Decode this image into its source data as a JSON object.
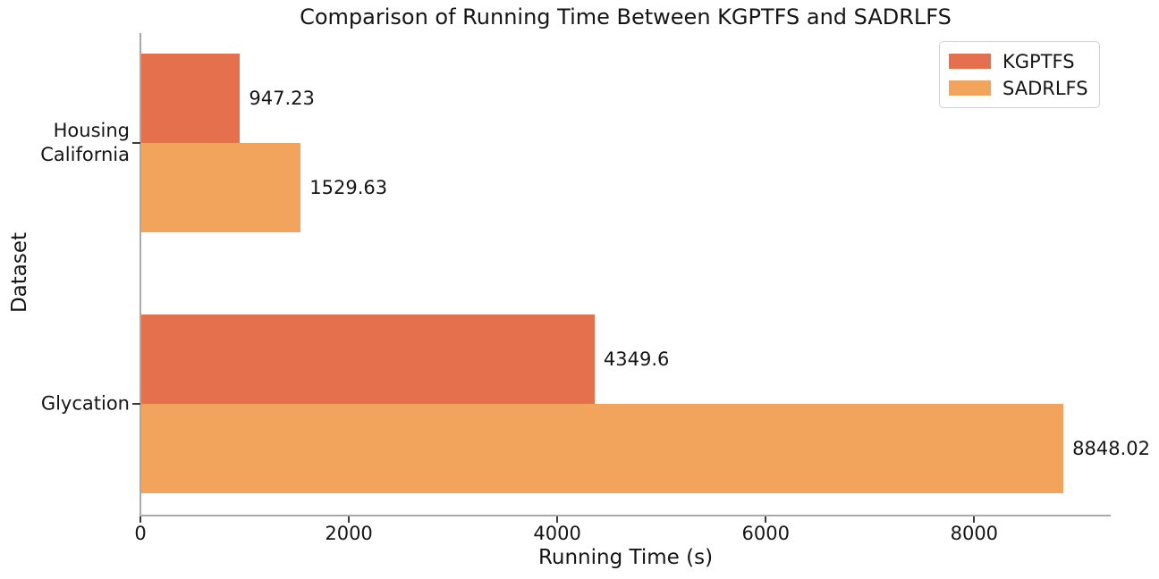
{
  "chart_data": {
    "type": "bar",
    "orientation": "horizontal",
    "title": "Comparison of Running Time Between KGPTFS and SADRLFS",
    "xlabel": "Running Time (s)",
    "ylabel": "Dataset",
    "categories": [
      "Housing\nCalifornia",
      "Glycation"
    ],
    "category_labels": [
      [
        "Housing",
        "California"
      ],
      [
        "Glycation"
      ]
    ],
    "series": [
      {
        "name": "KGPTFS",
        "color": "#e4704e",
        "values": [
          947.23,
          4349.6
        ],
        "value_labels": [
          "947.23",
          "4349.6"
        ]
      },
      {
        "name": "SADRLFS",
        "color": "#f3a45c",
        "values": [
          1529.63,
          8848.02
        ],
        "value_labels": [
          "1529.63",
          "8848.02"
        ]
      }
    ],
    "xticks": [
      0,
      2000,
      4000,
      6000,
      8000
    ],
    "xtick_labels": [
      "0",
      "2000",
      "4000",
      "6000",
      "8000"
    ],
    "xlim": [
      0,
      9310
    ],
    "grid": false,
    "legend": {
      "position": "upper right",
      "entries": [
        "KGPTFS",
        "SADRLFS"
      ]
    },
    "colors": {
      "spine": "#a9a9a9",
      "tick": "#3a3a3a",
      "text": "#151515"
    }
  }
}
